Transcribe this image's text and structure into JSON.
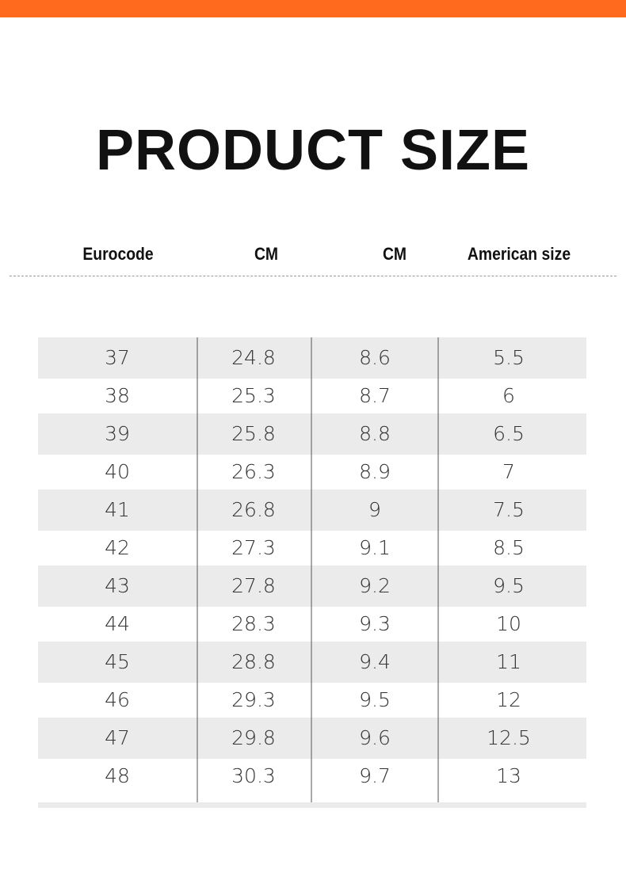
{
  "header": {
    "title": "PRODUCT SIZE"
  },
  "table": {
    "columns": [
      "Eurocode",
      "CM",
      "CM",
      "American size"
    ],
    "rows": [
      [
        "37",
        "24.8",
        "8.6",
        "5.5"
      ],
      [
        "38",
        "25.3",
        "8.7",
        "6"
      ],
      [
        "39",
        "25.8",
        "8.8",
        "6.5"
      ],
      [
        "40",
        "26.3",
        "8.9",
        "7"
      ],
      [
        "41",
        "26.8",
        "9",
        "7.5"
      ],
      [
        "42",
        "27.3",
        "9.1",
        "8.5"
      ],
      [
        "43",
        "27.8",
        "9.2",
        "9.5"
      ],
      [
        "44",
        "28.3",
        "9.3",
        "10"
      ],
      [
        "45",
        "28.8",
        "9.4",
        "11"
      ],
      [
        "46",
        "29.3",
        "9.5",
        "12"
      ],
      [
        "47",
        "29.8",
        "9.6",
        "12.5"
      ],
      [
        "48",
        "30.3",
        "9.7",
        "13"
      ]
    ]
  }
}
